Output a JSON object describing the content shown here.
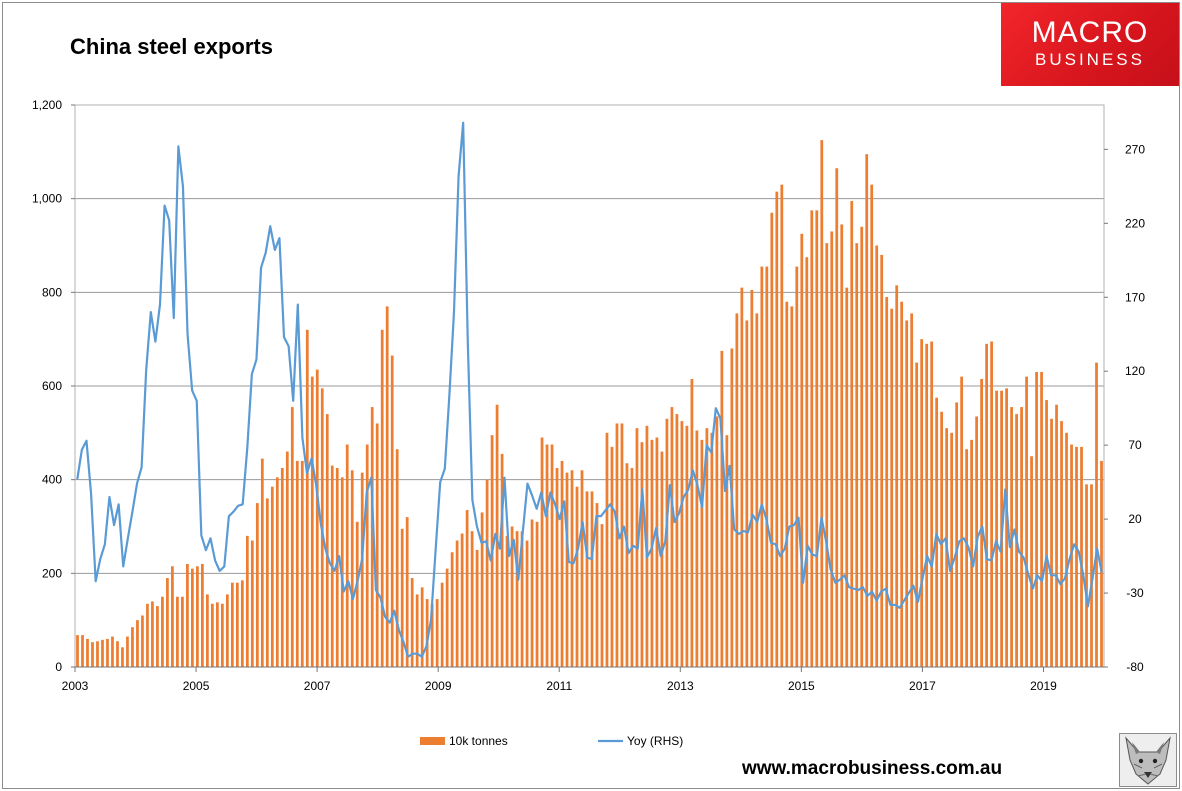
{
  "logo": {
    "line1": "MACRO",
    "line2": "BUSINESS"
  },
  "footer": {
    "url": "www.macrobusiness.com.au"
  },
  "colors": {
    "bars": "#ed7d31",
    "line": "#5b9bd5",
    "grid": "#9a9a9a",
    "brand": "#e31e24"
  },
  "chart_data": {
    "type": "bar",
    "title": "China steel exports",
    "xlabel": "",
    "ylabel": "",
    "x_start": 2003,
    "x_end": 2020,
    "xticks": [
      "2003",
      "2005",
      "2007",
      "2009",
      "2011",
      "2013",
      "2015",
      "2017",
      "2019"
    ],
    "ylim": [
      0,
      1200
    ],
    "yticks": [
      "0",
      "200",
      "400",
      "600",
      "800",
      "1,000",
      "1,200"
    ],
    "y2lim": [
      -80,
      300
    ],
    "y2ticks": [
      "-80",
      "-30",
      "20",
      "70",
      "120",
      "170",
      "220",
      "270"
    ],
    "legend_position": "bottom",
    "series": [
      {
        "name": "10k tonnes",
        "kind": "bar",
        "axis": "left",
        "values": [
          68,
          68,
          60,
          53,
          55,
          58,
          60,
          65,
          55,
          42,
          65,
          85,
          100,
          110,
          135,
          140,
          130,
          150,
          190,
          215,
          150,
          150,
          220,
          210,
          215,
          220,
          155,
          135,
          138,
          135,
          155,
          180,
          180,
          185,
          280,
          270,
          350,
          445,
          360,
          385,
          405,
          425,
          460,
          555,
          440,
          440,
          720,
          620,
          635,
          595,
          540,
          430,
          425,
          405,
          475,
          420,
          310,
          415,
          475,
          555,
          520,
          720,
          770,
          665,
          465,
          295,
          320,
          190,
          155,
          170,
          145,
          135,
          145,
          180,
          210,
          245,
          270,
          285,
          335,
          290,
          250,
          330,
          400,
          495,
          560,
          455,
          280,
          300,
          290,
          290,
          270,
          315,
          310,
          490,
          475,
          475,
          425,
          440,
          415,
          420,
          385,
          420,
          375,
          375,
          350,
          305,
          500,
          470,
          520,
          520,
          435,
          425,
          510,
          480,
          515,
          485,
          490,
          460,
          530,
          555,
          540,
          525,
          515,
          615,
          505,
          485,
          510,
          500,
          535,
          675,
          495,
          680,
          755,
          810,
          740,
          805,
          755,
          855,
          855,
          970,
          1015,
          1030,
          780,
          770,
          855,
          925,
          875,
          975,
          975,
          1125,
          905,
          930,
          1065,
          945,
          810,
          995,
          905,
          940,
          1095,
          1030,
          900,
          880,
          790,
          765,
          815,
          780,
          740,
          755,
          650,
          700,
          690,
          695,
          575,
          545,
          510,
          500,
          565,
          620,
          465,
          485,
          535,
          615,
          690,
          695,
          590,
          590,
          595,
          555,
          540,
          555,
          620,
          450,
          630,
          630,
          570,
          530,
          560,
          525,
          500,
          475,
          470,
          470,
          390,
          390,
          650,
          440
        ]
      },
      {
        "name": "Yoy (RHS)",
        "kind": "line",
        "axis": "right",
        "values": [
          47,
          67,
          73,
          37,
          -22,
          -7,
          3,
          35,
          16,
          30,
          -12,
          7,
          25,
          44,
          55,
          121,
          160,
          140,
          165,
          232,
          222,
          156,
          272,
          245,
          145,
          107,
          100,
          9,
          -1,
          7,
          -8,
          -15,
          -12,
          22,
          25,
          29,
          30,
          68,
          118,
          128,
          190,
          200,
          218,
          202,
          210,
          143,
          137,
          100,
          165,
          75,
          51,
          61,
          43,
          17,
          0,
          -10,
          -15,
          -5,
          -29,
          -22,
          -34,
          -22,
          -7,
          38,
          48,
          -28,
          -33,
          -46,
          -50,
          -42,
          -55,
          -63,
          -73,
          -71,
          -71,
          -73,
          -66,
          -48,
          -1,
          45,
          54,
          104,
          160,
          252,
          288,
          140,
          33,
          15,
          4,
          5,
          -8,
          10,
          0,
          48,
          -5,
          6,
          -21,
          12,
          44,
          36,
          27,
          38,
          22,
          38,
          30,
          20,
          32,
          -9,
          -10,
          0,
          18,
          -6,
          -7,
          22,
          22,
          26,
          30,
          25,
          7,
          15,
          -3,
          2,
          0,
          40,
          -6,
          0,
          14,
          -5,
          5,
          43,
          18,
          24,
          35,
          40,
          53,
          43,
          28,
          70,
          65,
          95,
          88,
          39,
          56,
          13,
          10,
          12,
          11,
          23,
          18,
          30,
          20,
          4,
          3,
          -5,
          0,
          15,
          16,
          21,
          -23,
          2,
          -4,
          -5,
          21,
          5,
          -14,
          -23,
          -21,
          -18,
          -26,
          -27,
          -28,
          -26,
          -32,
          -29,
          -35,
          -29,
          -27,
          -38,
          -38,
          -40,
          -35,
          -30,
          -25,
          -36,
          -20,
          -5,
          -12,
          10,
          3,
          7,
          -15,
          -6,
          5,
          7,
          1,
          -12,
          8,
          15,
          -7,
          -8,
          5,
          -2,
          40,
          1,
          13,
          -2,
          -6,
          -17,
          -27,
          -18,
          -22,
          -5,
          -18,
          -18,
          -24,
          -20,
          -7,
          3,
          -2,
          -18,
          -39,
          -20,
          0,
          -16
        ]
      }
    ]
  }
}
